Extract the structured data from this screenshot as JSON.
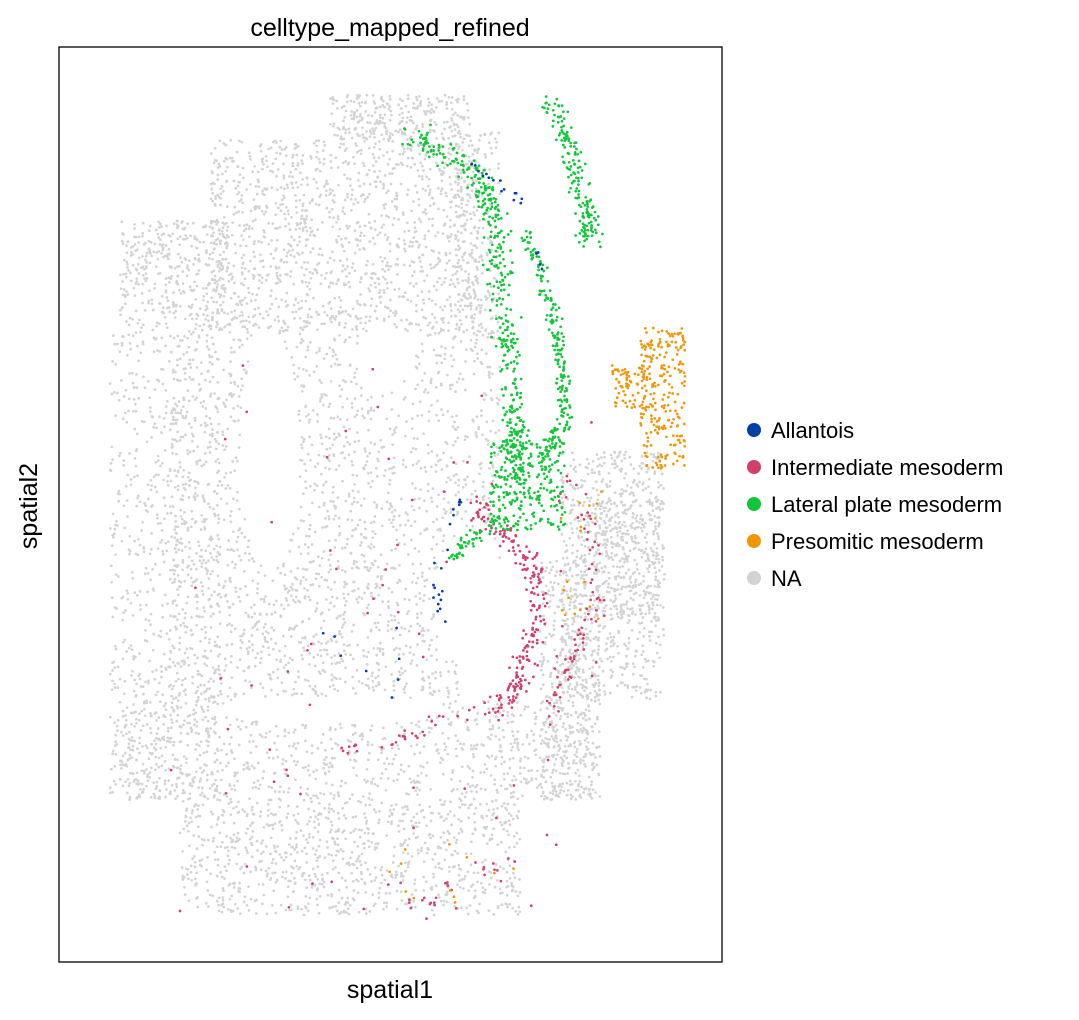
{
  "chart_data": {
    "type": "scatter",
    "title": "celltype_mapped_refined",
    "xlabel": "spatial1",
    "ylabel": "spatial2",
    "grid": false,
    "ticks": "none",
    "legend_position": "right",
    "categories": [
      {
        "name": "Allantois",
        "color": "#023fa5"
      },
      {
        "name": "Intermediate mesoderm",
        "color": "#d33f6a"
      },
      {
        "name": "Lateral plate mesoderm",
        "color": "#11c638"
      },
      {
        "name": "Presomitic mesoderm",
        "color": "#ef9708"
      },
      {
        "name": "NA",
        "color": "#d3d3d3"
      }
    ],
    "note_values": "Axes carry no tick labels; point coordinates are not printed. Category regions below approximate the spatial spread on a normalized 0-1 frame (x left to right, y bottom to top).",
    "clusters": [
      {
        "category": "NA",
        "region": "embryo body",
        "n": 9000
      },
      {
        "category": "Lateral plate mesoderm",
        "region": "central band and upper arms",
        "n": 1100
      },
      {
        "category": "Intermediate mesoderm",
        "region": "lower-right band with scattered outliers",
        "n": 420
      },
      {
        "category": "Presomitic mesoderm",
        "region": "right lobe",
        "n": 330
      },
      {
        "category": "Allantois",
        "region": "small clusters near central band",
        "n": 45
      }
    ]
  }
}
